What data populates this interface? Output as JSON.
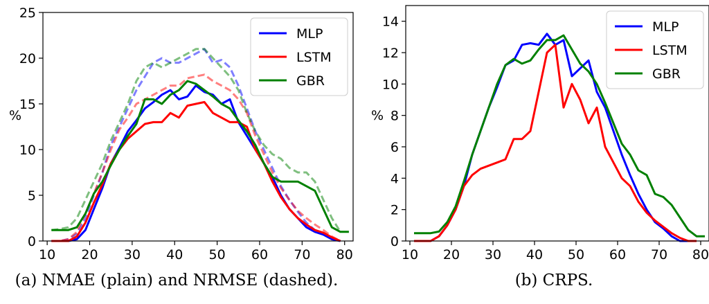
{
  "chart_data": [
    {
      "type": "line",
      "caption": "(a) NMAE (plain) and NRMSE (dashed).",
      "ylabel": "%",
      "xlim": [
        9,
        82
      ],
      "ylim": [
        0,
        25
      ],
      "xticks": [
        10,
        20,
        30,
        40,
        50,
        60,
        70,
        80
      ],
      "yticks": [
        0,
        5,
        10,
        15,
        20,
        25
      ],
      "legend_position": "top-right",
      "legend": [
        "MLP",
        "LSTM",
        "GBR"
      ],
      "colors": {
        "MLP": "#0000ff",
        "LSTM": "#ff0000",
        "GBR": "#008000"
      },
      "series": [
        {
          "name": "MLP",
          "style": "solid",
          "x": [
            11,
            13,
            15,
            17,
            19,
            21,
            23,
            25,
            27,
            29,
            31,
            33,
            35,
            37,
            39,
            41,
            43,
            45,
            47,
            49,
            51,
            53,
            55,
            57,
            59,
            61,
            63,
            65,
            67,
            69,
            71,
            73,
            75,
            77,
            79
          ],
          "y": [
            0,
            0,
            0,
            0.2,
            1.2,
            3.5,
            5.8,
            8.5,
            10.2,
            12,
            13.2,
            14.5,
            15.2,
            16,
            16.5,
            15.5,
            15.8,
            17,
            16.3,
            16,
            15,
            15.5,
            13,
            11.5,
            10,
            8.5,
            7,
            5,
            3.5,
            2.5,
            1.5,
            1,
            0.7,
            0.2,
            0
          ]
        },
        {
          "name": "LSTM",
          "style": "solid",
          "x": [
            11,
            13,
            15,
            17,
            19,
            21,
            23,
            25,
            27,
            29,
            31,
            33,
            35,
            37,
            39,
            41,
            43,
            45,
            47,
            49,
            51,
            53,
            55,
            57,
            59,
            61,
            63,
            65,
            67,
            69,
            71,
            73,
            75,
            77,
            79
          ],
          "y": [
            0,
            0,
            0,
            0.5,
            2,
            4.2,
            6.2,
            8.5,
            10,
            11.2,
            12,
            12.8,
            13,
            13,
            14,
            13.5,
            14.8,
            15,
            15.2,
            14,
            13.5,
            13,
            13,
            12.5,
            10,
            8.5,
            6.5,
            4.8,
            3.5,
            2.5,
            1.8,
            1.2,
            0.9,
            0.4,
            0
          ]
        },
        {
          "name": "GBR",
          "style": "solid",
          "x": [
            11,
            13,
            15,
            17,
            19,
            21,
            23,
            25,
            27,
            29,
            31,
            33,
            35,
            37,
            39,
            41,
            43,
            45,
            47,
            49,
            51,
            53,
            55,
            57,
            59,
            61,
            63,
            65,
            67,
            69,
            71,
            73,
            75,
            77,
            79,
            81
          ],
          "y": [
            1.2,
            1.2,
            1.2,
            1.5,
            3,
            5.2,
            6.5,
            8.3,
            10,
            11.5,
            12.8,
            15.5,
            15.5,
            15,
            16,
            16.5,
            17.5,
            17.2,
            16.5,
            15.8,
            15,
            14.5,
            13.2,
            12,
            10.5,
            8.5,
            7,
            6.5,
            6.5,
            6.5,
            6,
            5.5,
            3.5,
            1.5,
            1,
            1
          ]
        },
        {
          "name": "MLP-NRMSE",
          "style": "dashed",
          "x": [
            11,
            13,
            15,
            17,
            19,
            21,
            23,
            25,
            27,
            29,
            31,
            33,
            35,
            37,
            39,
            41,
            43,
            45,
            47,
            49,
            51,
            53,
            55,
            57,
            59,
            61,
            63,
            65,
            67,
            69,
            71,
            73,
            75,
            77,
            79
          ],
          "y": [
            0,
            0,
            0.2,
            0.8,
            2.5,
            5,
            7.5,
            10.5,
            12.5,
            14.5,
            16.5,
            18,
            19.5,
            20,
            19.5,
            19.5,
            20,
            20.5,
            21,
            19.5,
            19.8,
            19,
            17,
            14.5,
            12,
            10,
            8,
            6,
            4.5,
            3.2,
            2,
            1.2,
            0.8,
            0.3,
            0
          ]
        },
        {
          "name": "LSTM-NRMSE",
          "style": "dashed",
          "x": [
            11,
            13,
            15,
            17,
            19,
            21,
            23,
            25,
            27,
            29,
            31,
            33,
            35,
            37,
            39,
            41,
            43,
            45,
            47,
            49,
            51,
            53,
            55,
            57,
            59,
            61,
            63,
            65,
            67,
            69,
            71,
            73,
            75,
            77,
            79
          ],
          "y": [
            0,
            0,
            0.2,
            1,
            3,
            5.2,
            7.5,
            10,
            12.2,
            13.5,
            15,
            15.5,
            16,
            16.5,
            17,
            17,
            17.8,
            18,
            18.2,
            17.5,
            17,
            16.5,
            15.5,
            14,
            11.5,
            9.5,
            7.5,
            5.8,
            4.5,
            3.3,
            2.5,
            1.8,
            1.2,
            0.5,
            0
          ]
        },
        {
          "name": "GBR-NRMSE",
          "style": "dashed",
          "x": [
            11,
            13,
            15,
            17,
            19,
            21,
            23,
            25,
            27,
            29,
            31,
            33,
            35,
            37,
            39,
            41,
            43,
            45,
            47,
            49,
            51,
            53,
            55,
            57,
            59,
            61,
            63,
            65,
            67,
            69,
            71,
            73,
            75,
            77,
            79
          ],
          "y": [
            1.2,
            1.3,
            1.5,
            2.5,
            4.5,
            6.5,
            8.5,
            11,
            13,
            15,
            17.5,
            19,
            19.5,
            19,
            19.5,
            20,
            20.5,
            21,
            21,
            20,
            19,
            18,
            16.5,
            14,
            12,
            10.5,
            9.5,
            9,
            8,
            7.5,
            7.5,
            6.5,
            4.5,
            2.5,
            1
          ]
        }
      ]
    },
    {
      "type": "line",
      "caption": "(b) CRPS.",
      "ylabel": "%",
      "xlim": [
        9,
        82
      ],
      "ylim": [
        0,
        15
      ],
      "xticks": [
        10,
        20,
        30,
        40,
        50,
        60,
        70,
        80
      ],
      "yticks": [
        0,
        2,
        4,
        6,
        8,
        10,
        12,
        14
      ],
      "legend_position": "top-right",
      "legend": [
        "MLP",
        "LSTM",
        "GBR"
      ],
      "colors": {
        "MLP": "#0000ff",
        "LSTM": "#ff0000",
        "GBR": "#008000"
      },
      "series": [
        {
          "name": "MLP",
          "style": "solid",
          "x": [
            11,
            13,
            15,
            17,
            19,
            21,
            23,
            25,
            27,
            29,
            31,
            33,
            35,
            37,
            39,
            41,
            43,
            45,
            47,
            49,
            51,
            53,
            55,
            57,
            59,
            61,
            63,
            65,
            67,
            69,
            71,
            73,
            75,
            77,
            79
          ],
          "y": [
            0,
            0,
            0,
            0.3,
            1,
            2,
            3.5,
            5.5,
            7,
            8.5,
            9.8,
            11.2,
            11.5,
            12.5,
            12.6,
            12.5,
            13.2,
            12.5,
            12.8,
            10.5,
            11,
            11.5,
            9.5,
            8.5,
            7,
            5.5,
            4.2,
            3,
            2,
            1.2,
            0.8,
            0.3,
            0,
            0,
            0
          ]
        },
        {
          "name": "LSTM",
          "style": "solid",
          "x": [
            11,
            13,
            15,
            17,
            19,
            21,
            23,
            25,
            27,
            29,
            31,
            33,
            35,
            37,
            39,
            41,
            43,
            45,
            47,
            49,
            51,
            53,
            55,
            57,
            59,
            61,
            63,
            65,
            67,
            69,
            71,
            73,
            75,
            77,
            79
          ],
          "y": [
            0,
            0,
            0,
            0.3,
            1,
            2,
            3.5,
            4.2,
            4.6,
            4.8,
            5,
            5.2,
            6.5,
            6.5,
            7,
            9.5,
            12,
            12.5,
            8.5,
            10,
            9,
            7.5,
            8.5,
            6,
            5,
            4,
            3.5,
            2.5,
            1.8,
            1.3,
            0.9,
            0.5,
            0.2,
            0,
            0
          ]
        },
        {
          "name": "GBR",
          "style": "solid",
          "x": [
            11,
            13,
            15,
            17,
            19,
            21,
            23,
            25,
            27,
            29,
            31,
            33,
            35,
            37,
            39,
            41,
            43,
            45,
            47,
            49,
            51,
            53,
            55,
            57,
            59,
            61,
            63,
            65,
            67,
            69,
            71,
            73,
            75,
            77,
            79,
            81
          ],
          "y": [
            0.5,
            0.5,
            0.5,
            0.6,
            1.2,
            2.2,
            3.8,
            5.5,
            7,
            8.5,
            10,
            11.2,
            11.6,
            11.3,
            11.5,
            12.2,
            12.8,
            12.8,
            13.1,
            12.2,
            11.3,
            10.8,
            10,
            8.8,
            7.5,
            6.2,
            5.5,
            4.5,
            4.2,
            3,
            2.8,
            2.3,
            1.5,
            0.7,
            0.3,
            0.3
          ]
        }
      ]
    }
  ]
}
